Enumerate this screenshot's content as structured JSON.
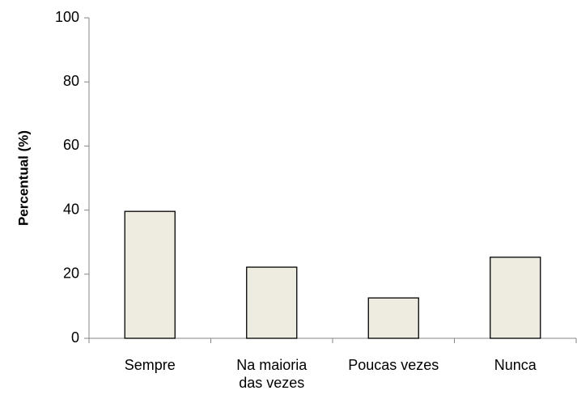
{
  "chart_data": {
    "type": "bar",
    "ylabel": "Percentual (%)",
    "categories": [
      "Sempre",
      "Na maioria das vezes",
      "Poucas vezes",
      "Nunca"
    ],
    "values": [
      39.6,
      22.2,
      12.6,
      25.3
    ],
    "color": "#eeece1",
    "ylim": [
      0,
      100
    ],
    "yticks": [
      0,
      20,
      40,
      60,
      80,
      100
    ],
    "grid": false
  }
}
